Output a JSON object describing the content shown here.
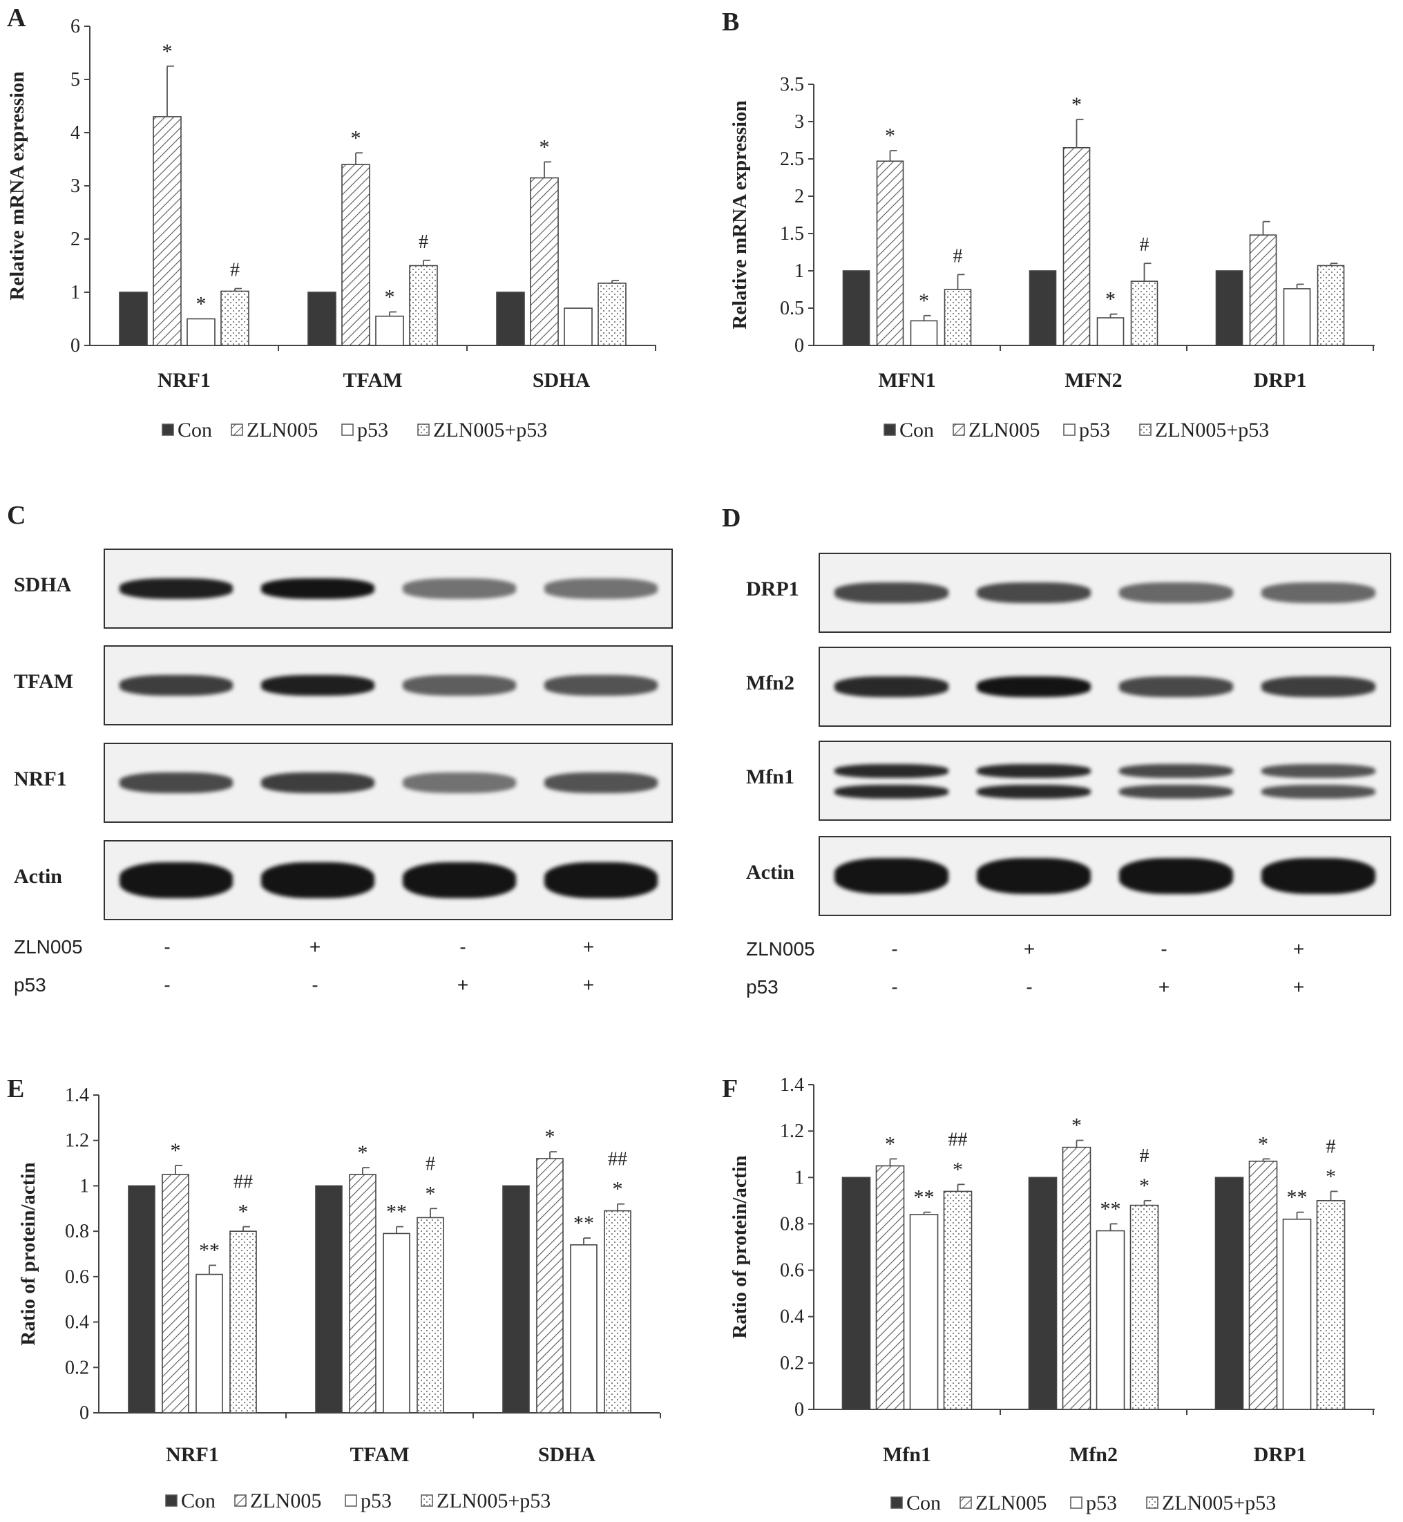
{
  "panels": [
    "A",
    "B",
    "C",
    "D",
    "E",
    "F"
  ],
  "legend": [
    "Con",
    "ZLN005",
    "p53",
    "ZLN005+p53"
  ],
  "chart_data": [
    {
      "id": "A",
      "type": "bar",
      "ylabel": "Relative mRNA expression",
      "ylim": [
        0,
        6
      ],
      "yticks": [
        "0",
        "1",
        "2",
        "3",
        "4",
        "5",
        "6"
      ],
      "categories": [
        "NRF1",
        "TFAM",
        "SDHA"
      ],
      "series": [
        {
          "name": "Con",
          "values": [
            1,
            1,
            1
          ],
          "errors": [
            0,
            0,
            0
          ],
          "marks": [
            "",
            "",
            ""
          ]
        },
        {
          "name": "ZLN005",
          "values": [
            4.3,
            3.4,
            3.15
          ],
          "errors": [
            0.95,
            0.22,
            0.3
          ],
          "marks": [
            "*",
            "*",
            "*"
          ]
        },
        {
          "name": "p53",
          "values": [
            0.5,
            0.55,
            0.7
          ],
          "errors": [
            0,
            0.08,
            0
          ],
          "marks": [
            "*",
            "*",
            ""
          ]
        },
        {
          "name": "ZLN005+p53",
          "values": [
            1.02,
            1.5,
            1.17
          ],
          "errors": [
            0.05,
            0.1,
            0.05
          ],
          "marks": [
            "#",
            "#",
            ""
          ]
        }
      ]
    },
    {
      "id": "B",
      "type": "bar",
      "ylabel": "Relative mRNA expression",
      "ylim": [
        0,
        3.5
      ],
      "yticks": [
        "0",
        "0.5",
        "1",
        "1.5",
        "2",
        "2.5",
        "3",
        "3.5"
      ],
      "categories": [
        "MFN1",
        "MFN2",
        "DRP1"
      ],
      "series": [
        {
          "name": "Con",
          "values": [
            1,
            1,
            1
          ],
          "errors": [
            0,
            0,
            0
          ],
          "marks": [
            "",
            "",
            ""
          ]
        },
        {
          "name": "ZLN005",
          "values": [
            2.47,
            2.65,
            1.48
          ],
          "errors": [
            0.14,
            0.38,
            0.18
          ],
          "marks": [
            "*",
            "*",
            ""
          ]
        },
        {
          "name": "p53",
          "values": [
            0.33,
            0.37,
            0.76
          ],
          "errors": [
            0.07,
            0.05,
            0.06
          ],
          "marks": [
            "*",
            "*",
            ""
          ]
        },
        {
          "name": "ZLN005+p53",
          "values": [
            0.75,
            0.86,
            1.07
          ],
          "errors": [
            0.2,
            0.24,
            0.03
          ],
          "marks": [
            "#",
            "#",
            ""
          ]
        }
      ]
    },
    {
      "id": "E",
      "type": "bar",
      "ylabel": "Ratio of protein/actin",
      "ylim": [
        0,
        1.4
      ],
      "yticks": [
        "0",
        "0.2",
        "0.4",
        "0.6",
        "0.8",
        "1",
        "1.2",
        "1.4"
      ],
      "categories": [
        "NRF1",
        "TFAM",
        "SDHA"
      ],
      "series": [
        {
          "name": "Con",
          "values": [
            1,
            1,
            1
          ],
          "errors": [
            0,
            0,
            0
          ],
          "marks": [
            "",
            "",
            ""
          ]
        },
        {
          "name": "ZLN005",
          "values": [
            1.05,
            1.05,
            1.12
          ],
          "errors": [
            0.04,
            0.03,
            0.03
          ],
          "marks": [
            "*",
            "*",
            "*"
          ]
        },
        {
          "name": "p53",
          "values": [
            0.61,
            0.79,
            0.74
          ],
          "errors": [
            0.04,
            0.03,
            0.03
          ],
          "marks": [
            "**",
            "**",
            "**"
          ]
        },
        {
          "name": "ZLN005+p53",
          "values": [
            0.8,
            0.86,
            0.89
          ],
          "errors": [
            0.02,
            0.04,
            0.03
          ],
          "marks": [
            "*\n##",
            "*\n#",
            "*\n##"
          ]
        }
      ]
    },
    {
      "id": "F",
      "type": "bar",
      "ylabel": "Ratio of protein/actin",
      "ylim": [
        0,
        1.4
      ],
      "yticks": [
        "0",
        "0.2",
        "0.4",
        "0.6",
        "0.8",
        "1",
        "1.2",
        "1.4"
      ],
      "categories": [
        "Mfn1",
        "Mfn2",
        "DRP1"
      ],
      "series": [
        {
          "name": "Con",
          "values": [
            1,
            1,
            1
          ],
          "errors": [
            0,
            0,
            0
          ],
          "marks": [
            "",
            "",
            ""
          ]
        },
        {
          "name": "ZLN005",
          "values": [
            1.05,
            1.13,
            1.07
          ],
          "errors": [
            0.03,
            0.03,
            0.01
          ],
          "marks": [
            "*",
            "*",
            "*"
          ]
        },
        {
          "name": "p53",
          "values": [
            0.84,
            0.77,
            0.82
          ],
          "errors": [
            0.01,
            0.03,
            0.03
          ],
          "marks": [
            "**",
            "**",
            "**"
          ]
        },
        {
          "name": "ZLN005+p53",
          "values": [
            0.94,
            0.88,
            0.9
          ],
          "errors": [
            0.03,
            0.02,
            0.04
          ],
          "marks": [
            "*\n##",
            "*\n#",
            "*\n#"
          ]
        }
      ]
    }
  ],
  "blots": {
    "C": {
      "rows": [
        {
          "label": "SDHA",
          "intensity": [
            0.95,
            1.0,
            0.55,
            0.55
          ]
        },
        {
          "label": "TFAM",
          "intensity": [
            0.8,
            0.95,
            0.65,
            0.7
          ]
        },
        {
          "label": "NRF1",
          "intensity": [
            0.75,
            0.8,
            0.55,
            0.7
          ]
        },
        {
          "label": "Actin",
          "intensity": [
            1.0,
            1.0,
            1.0,
            1.0
          ]
        }
      ],
      "treatments": [
        {
          "label": "ZLN005",
          "signs": [
            "-",
            "+",
            "-",
            "+"
          ]
        },
        {
          "label": "p53",
          "signs": [
            "-",
            "-",
            "+",
            "+"
          ]
        }
      ]
    },
    "D": {
      "rows": [
        {
          "label": "DRP1",
          "intensity": [
            0.75,
            0.75,
            0.6,
            0.6
          ]
        },
        {
          "label": "Mfn2",
          "intensity": [
            0.9,
            1.0,
            0.75,
            0.8
          ]
        },
        {
          "label": "Mfn1",
          "intensity": [
            0.9,
            0.9,
            0.75,
            0.7
          ]
        },
        {
          "label": "Actin",
          "intensity": [
            1.0,
            1.0,
            1.0,
            1.0
          ]
        }
      ],
      "treatments": [
        {
          "label": "ZLN005",
          "signs": [
            "-",
            "+",
            "-",
            "+"
          ]
        },
        {
          "label": "p53",
          "signs": [
            "-",
            "-",
            "+",
            "+"
          ]
        }
      ]
    }
  },
  "colors": {
    "con": "#3a3a3a",
    "bar_edge": "#444444",
    "axis": "#444444"
  }
}
